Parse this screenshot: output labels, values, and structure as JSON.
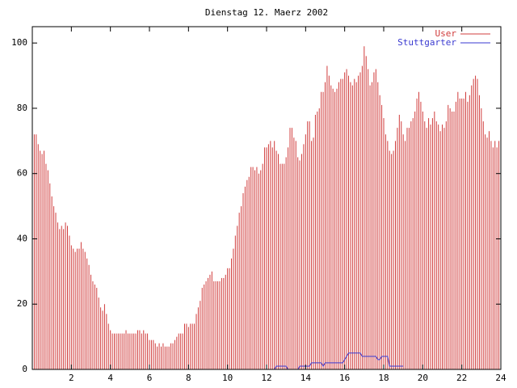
{
  "chart_data": {
    "type": "impulse-line",
    "title": "Dienstag 12. Maerz 2002",
    "xlim": [
      0,
      24
    ],
    "xticks": [
      2,
      4,
      6,
      8,
      10,
      12,
      14,
      16,
      18,
      20,
      22,
      24
    ],
    "ylim": [
      0,
      105
    ],
    "yticks": [
      0,
      20,
      40,
      60,
      80,
      100
    ],
    "legend": "top-right",
    "series": [
      {
        "name": "User",
        "color": "#d03c3c",
        "style": "impulses",
        "x": [
          0,
          0.1,
          0.2,
          0.3,
          0.4,
          0.5,
          0.6,
          0.7,
          0.8,
          0.9,
          1,
          1.1,
          1.2,
          1.3,
          1.4,
          1.5,
          1.6,
          1.7,
          1.8,
          1.9,
          2,
          2.1,
          2.2,
          2.3,
          2.4,
          2.5,
          2.6,
          2.7,
          2.8,
          2.9,
          3,
          3.1,
          3.2,
          3.3,
          3.4,
          3.5,
          3.6,
          3.7,
          3.8,
          3.9,
          4,
          4.1,
          4.2,
          4.3,
          4.4,
          4.5,
          4.6,
          4.7,
          4.8,
          4.9,
          5,
          5.1,
          5.2,
          5.3,
          5.4,
          5.5,
          5.6,
          5.7,
          5.8,
          5.9,
          6,
          6.1,
          6.2,
          6.3,
          6.4,
          6.5,
          6.6,
          6.7,
          6.8,
          6.9,
          7,
          7.1,
          7.2,
          7.3,
          7.4,
          7.5,
          7.6,
          7.7,
          7.8,
          7.9,
          8,
          8.1,
          8.2,
          8.3,
          8.4,
          8.5,
          8.6,
          8.7,
          8.8,
          8.9,
          9,
          9.1,
          9.2,
          9.3,
          9.4,
          9.5,
          9.6,
          9.7,
          9.8,
          9.9,
          10,
          10.1,
          10.2,
          10.3,
          10.4,
          10.5,
          10.6,
          10.7,
          10.8,
          10.9,
          11,
          11.1,
          11.2,
          11.3,
          11.4,
          11.5,
          11.6,
          11.7,
          11.8,
          11.9,
          12,
          12.1,
          12.2,
          12.3,
          12.4,
          12.5,
          12.6,
          12.7,
          12.8,
          12.9,
          13,
          13.1,
          13.2,
          13.3,
          13.4,
          13.5,
          13.6,
          13.7,
          13.8,
          13.9,
          14,
          14.1,
          14.2,
          14.3,
          14.4,
          14.5,
          14.6,
          14.7,
          14.8,
          14.9,
          15,
          15.1,
          15.2,
          15.3,
          15.4,
          15.5,
          15.6,
          15.7,
          15.8,
          15.9,
          16,
          16.1,
          16.2,
          16.3,
          16.4,
          16.5,
          16.6,
          16.7,
          16.8,
          16.9,
          17,
          17.1,
          17.2,
          17.3,
          17.4,
          17.5,
          17.6,
          17.7,
          17.8,
          17.9,
          18,
          18.1,
          18.2,
          18.3,
          18.4,
          18.5,
          18.6,
          18.7,
          18.8,
          18.9,
          19,
          19.1,
          19.2,
          19.3,
          19.4,
          19.5,
          19.6,
          19.7,
          19.8,
          19.9,
          20,
          20.1,
          20.2,
          20.3,
          20.4,
          20.5,
          20.6,
          20.7,
          20.8,
          20.9,
          21,
          21.1,
          21.2,
          21.3,
          21.4,
          21.5,
          21.6,
          21.7,
          21.8,
          21.9,
          22,
          22.1,
          22.2,
          22.3,
          22.4,
          22.5,
          22.6,
          22.7,
          22.8,
          22.9,
          23,
          23.1,
          23.2,
          23.3,
          23.4,
          23.5,
          23.6,
          23.7,
          23.8,
          23.9
        ],
        "values": [
          76,
          72,
          72,
          69,
          67,
          66,
          67,
          63,
          61,
          57,
          53,
          50,
          48,
          45,
          43,
          44,
          43,
          45,
          44,
          41,
          38,
          37,
          36,
          37,
          37,
          39,
          37,
          36,
          34,
          32,
          29,
          27,
          26,
          25,
          22,
          19,
          18,
          20,
          17,
          14,
          12,
          11,
          11,
          11,
          11,
          11,
          11,
          11,
          12,
          11,
          11,
          11,
          11,
          11,
          12,
          12,
          11,
          12,
          11,
          11,
          9,
          9,
          9,
          8,
          7,
          8,
          7,
          8,
          7,
          7,
          7,
          8,
          8,
          9,
          10,
          11,
          11,
          11,
          14,
          14,
          13,
          14,
          14,
          14,
          17,
          19,
          21,
          25,
          26,
          27,
          28,
          29,
          30,
          27,
          27,
          27,
          27,
          28,
          28,
          29,
          31,
          31,
          34,
          37,
          41,
          44,
          48,
          50,
          54,
          56,
          58,
          59,
          62,
          62,
          61,
          62,
          60,
          61,
          63,
          68,
          68,
          69,
          70,
          68,
          70,
          67,
          66,
          63,
          63,
          63,
          65,
          68,
          74,
          74,
          71,
          70,
          65,
          64,
          66,
          69,
          72,
          76,
          76,
          70,
          71,
          78,
          79,
          80,
          85,
          85,
          88,
          93,
          90,
          87,
          86,
          85,
          86,
          88,
          89,
          89,
          91,
          92,
          90,
          88,
          87,
          89,
          88,
          90,
          91,
          93,
          99,
          96,
          92,
          87,
          88,
          91,
          92,
          88,
          84,
          81,
          77,
          72,
          70,
          67,
          66,
          67,
          70,
          74,
          78,
          76,
          72,
          70,
          74,
          74,
          76,
          77,
          79,
          83,
          85,
          82,
          79,
          76,
          74,
          77,
          75,
          77,
          79,
          76,
          75,
          73,
          75,
          74,
          76,
          81,
          80,
          79,
          79,
          82,
          85,
          83,
          83,
          83,
          85,
          82,
          84,
          87,
          89,
          90,
          89,
          84,
          80,
          76,
          72,
          71,
          73,
          70,
          68,
          70,
          68,
          70
        ]
      },
      {
        "name": "Stuttgarter",
        "color": "#3a3ad0",
        "style": "line",
        "x": [
          12.4,
          12.5,
          13.0,
          13.1,
          13.6,
          13.7,
          14.2,
          14.3,
          14.8,
          14.9,
          15.0,
          15.9,
          16.0,
          16.1,
          16.2,
          16.8,
          16.9,
          17.6,
          17.7,
          17.8,
          17.9,
          18.2,
          18.3,
          19.0
        ],
        "values": [
          0,
          1,
          1,
          0,
          0,
          1,
          1,
          2,
          2,
          1,
          2,
          2,
          3,
          4,
          5,
          5,
          4,
          4,
          3,
          3,
          4,
          4,
          1,
          1
        ]
      }
    ]
  }
}
